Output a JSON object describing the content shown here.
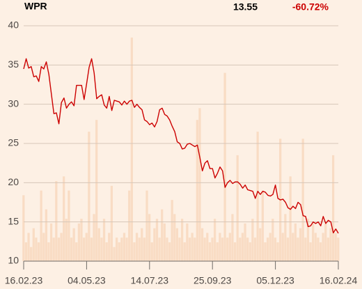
{
  "chart_data": {
    "type": "line",
    "title": "WPR",
    "last": "13.55",
    "change": "-60.72%",
    "change_color": "#cc0000",
    "color": "#cc0000",
    "grid": true,
    "categories": [
      "16.02.23",
      null,
      null,
      null,
      null,
      null,
      null,
      null,
      null,
      null,
      null,
      null,
      null,
      null,
      null,
      null,
      null,
      null,
      null,
      null,
      null,
      null,
      null,
      null,
      null,
      "04.05.23",
      null,
      null,
      null,
      null,
      null,
      null,
      null,
      null,
      null,
      null,
      null,
      null,
      null,
      null,
      null,
      null,
      null,
      null,
      null,
      null,
      null,
      null,
      null,
      null,
      "14.07.23",
      null,
      null,
      null,
      null,
      null,
      null,
      null,
      null,
      null,
      null,
      null,
      null,
      null,
      null,
      null,
      null,
      null,
      null,
      null,
      null,
      null,
      null,
      null,
      null,
      "25.09.23",
      null,
      null,
      null,
      null,
      null,
      null,
      null,
      null,
      null,
      null,
      null,
      null,
      null,
      null,
      null,
      null,
      null,
      null,
      null,
      null,
      null,
      null,
      null,
      null,
      "05.12.23",
      null,
      null,
      null,
      null,
      null,
      null,
      null,
      null,
      null,
      null,
      null,
      null,
      null,
      null,
      null,
      null,
      null,
      null,
      null,
      null,
      null,
      null,
      null,
      null,
      "16.02.24"
    ],
    "values": [
      34.5,
      35.8,
      34.6,
      34.8,
      33.5,
      33.6,
      32.9,
      34.8,
      34.5,
      35.4,
      33.8,
      31.3,
      28.8,
      28.9,
      27.5,
      30.2,
      30.8,
      29.5,
      30.0,
      30.3,
      29.8,
      32.4,
      32.4,
      32.4,
      30.6,
      32.6,
      34.7,
      35.8,
      34.0,
      30.7,
      31.0,
      31.2,
      29.9,
      29.5,
      31.0,
      29.2,
      30.5,
      30.4,
      30.3,
      29.9,
      30.4,
      30.0,
      30.4,
      30.5,
      29.6,
      30.0,
      29.6,
      29.3,
      28.0,
      27.8,
      27.4,
      27.6,
      27.1,
      27.8,
      29.3,
      29.5,
      28.7,
      28.5,
      28.0,
      27.2,
      26.5,
      25.2,
      25.0,
      24.3,
      24.4,
      24.9,
      25.0,
      24.8,
      24.6,
      24.8,
      23.2,
      21.5,
      22.5,
      22.8,
      21.8,
      21.8,
      20.6,
      21.2,
      22.0,
      21.5,
      19.4,
      20.0,
      20.3,
      19.9,
      20.1,
      20.1,
      19.8,
      19.3,
      19.7,
      19.1,
      19.0,
      18.9,
      18.0,
      18.9,
      18.5,
      18.9,
      18.8,
      18.4,
      18.3,
      18.5,
      19.7,
      18.0,
      17.8,
      17.9,
      17.5,
      16.8,
      16.6,
      17.0,
      16.7,
      17.5,
      17.2,
      15.8,
      15.7,
      14.4,
      14.5,
      15.0,
      14.8,
      15.0,
      14.5,
      15.7,
      14.8,
      15.2,
      15.0,
      13.6,
      14.1,
      13.55
    ],
    "ylim": [
      10,
      40
    ],
    "yticks": [
      10,
      15,
      20,
      25,
      30,
      35,
      40
    ],
    "volume": {
      "color": "#f9dcc4",
      "y2lim": [
        0,
        100
      ],
      "values": [
        28,
        8,
        12,
        6,
        14,
        10,
        8,
        30,
        12,
        22,
        8,
        16,
        10,
        34,
        10,
        12,
        36,
        18,
        30,
        10,
        14,
        8,
        16,
        18,
        10,
        12,
        55,
        10,
        20,
        60,
        14,
        10,
        18,
        8,
        12,
        32,
        6,
        10,
        8,
        10,
        12,
        10,
        30,
        95,
        8,
        12,
        10,
        14,
        10,
        30,
        20,
        8,
        14,
        18,
        10,
        22,
        16,
        10,
        8,
        26,
        20,
        14,
        10,
        18,
        8,
        16,
        10,
        12,
        10,
        60,
        65,
        14,
        10,
        12,
        8,
        10,
        18,
        8,
        12,
        10,
        80,
        10,
        12,
        20,
        8,
        45,
        10,
        12,
        16,
        10,
        8,
        18,
        10,
        55,
        14,
        30,
        8,
        10,
        12,
        18,
        10,
        8,
        52,
        12,
        20,
        10,
        36,
        12,
        16,
        10,
        14,
        52,
        10,
        18,
        8,
        16,
        12,
        10,
        8,
        12,
        16,
        10,
        14,
        45,
        12,
        10
      ]
    }
  }
}
